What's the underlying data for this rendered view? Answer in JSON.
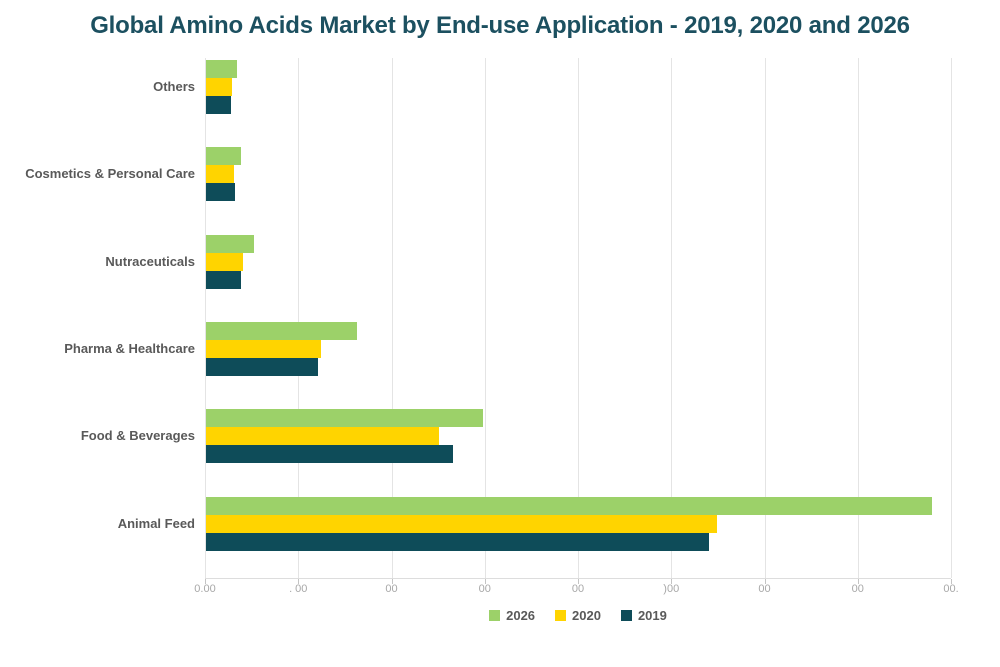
{
  "title": "Global Amino Acids Market by End-use Application - 2019, 2020 and 2026",
  "chart_data": {
    "type": "bar",
    "orientation": "horizontal",
    "title": "Global Amino Acids Market by End-use Application - 2019, 2020 and 2026",
    "categories": [
      "Others",
      "Cosmetics & Personal Care",
      "Nutraceuticals",
      "Pharma & Healthcare",
      "Food & Beverages",
      "Animal Feed"
    ],
    "series": [
      {
        "name": "2026",
        "color": "#9CD169",
        "values": [
          335,
          380,
          520,
          1620,
          2970,
          7790
        ]
      },
      {
        "name": "2020",
        "color": "#FFD400",
        "values": [
          280,
          300,
          400,
          1235,
          2500,
          5480
        ]
      },
      {
        "name": "2019",
        "color": "#0E4C59",
        "values": [
          270,
          315,
          380,
          1200,
          2650,
          5390
        ]
      }
    ],
    "xlim": [
      0,
      8000
    ],
    "x_tick_interval": 1000,
    "x_tick_labels_visible": [
      "0.00",
      ". 00",
      "00",
      "00",
      "00",
      ")00",
      "00",
      "00",
      "00."
    ],
    "grid": "vertical",
    "legend_position": "bottom",
    "legend": [
      "2026",
      "2020",
      "2019"
    ]
  },
  "colors": {
    "title_text": "#1C5060",
    "label_text": "#595959",
    "tick_text": "#A8A8A8",
    "gridline": "#E4E4E4",
    "series_2026": "#9CD169",
    "series_2020": "#FFD400",
    "series_2019": "#0E4C59"
  }
}
